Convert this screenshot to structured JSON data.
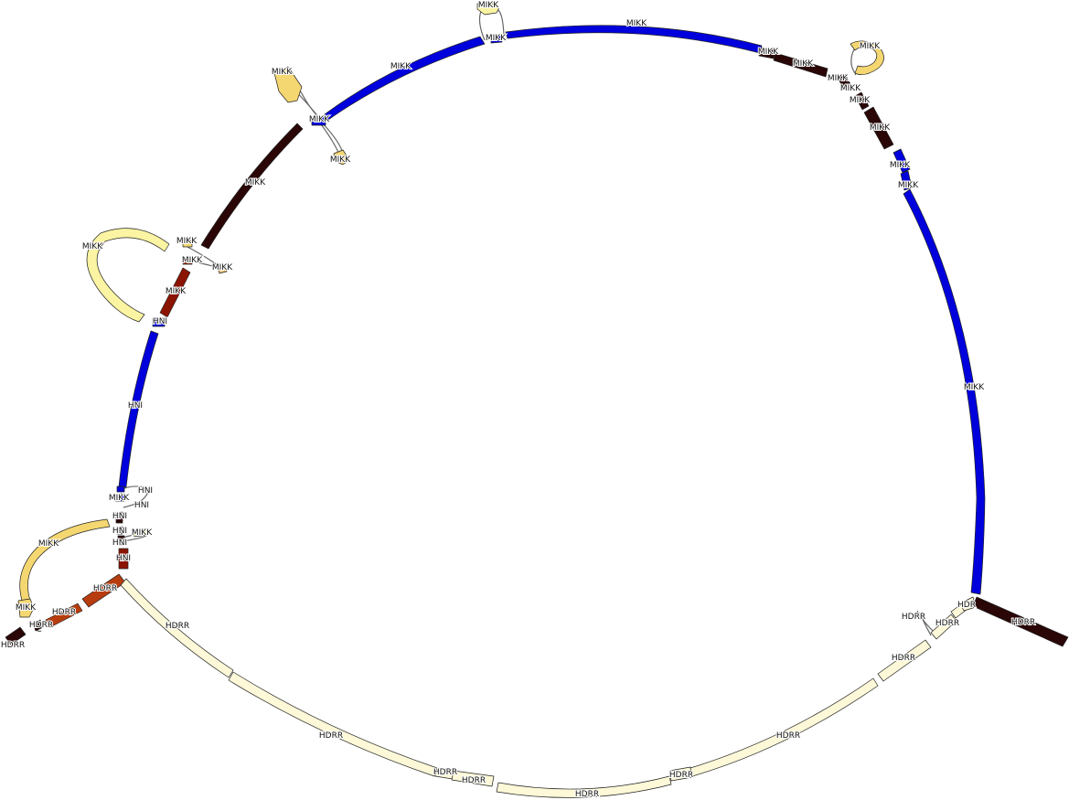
{
  "palette": {
    "blue": "#0000dd",
    "maroon": "#2a0606",
    "darkred": "#8b1400",
    "rust": "#b73d0f",
    "yellow": "#f5d771",
    "paleyellow": "#fbf4a2",
    "cream": "#fdf8d8",
    "peach": "#f2c57a"
  },
  "labels": {
    "mikk": "MIKK",
    "hni": "HNI",
    "hdrr": "HDRR",
    "hdr": "HDR"
  },
  "nodes": [
    {
      "id": "n-top-arc",
      "label": "MIKK",
      "color": "blue"
    },
    {
      "id": "n-top-bubble",
      "label": "MIKK",
      "color": "paleyellow"
    },
    {
      "id": "n-top-junction",
      "label": "MIKK",
      "color": "blue"
    },
    {
      "id": "n-upperleft-arc",
      "label": "MIKK",
      "color": "blue"
    },
    {
      "id": "n-upperleft-bubble-a",
      "label": "MIKK",
      "color": "yellow"
    },
    {
      "id": "n-upperleft-junction",
      "label": "MIKK",
      "color": "blue"
    },
    {
      "id": "n-upperleft-bubble-b",
      "label": "MIKK",
      "color": "yellow"
    },
    {
      "id": "n-left-diagonal",
      "label": "MIKK",
      "color": "maroon"
    },
    {
      "id": "n-left-loop",
      "label": "MIKK",
      "color": "paleyellow"
    },
    {
      "id": "n-left-junction-a",
      "label": "MIKK",
      "color": "yellow"
    },
    {
      "id": "n-left-junction-b",
      "label": "MIKK",
      "color": "darkred"
    },
    {
      "id": "n-left-junction-c",
      "label": "MIKK",
      "color": "peach"
    },
    {
      "id": "n-left-short",
      "label": "MIKK",
      "color": "darkred"
    },
    {
      "id": "n-left-hni-a",
      "label": "HNI",
      "color": "blue"
    },
    {
      "id": "n-left-hni-arc",
      "label": "HNI",
      "color": "blue"
    },
    {
      "id": "n-left-small-mikk",
      "label": "MIKK",
      "color": "blue"
    },
    {
      "id": "n-left-hni-b",
      "label": "HNI",
      "color": "blue"
    },
    {
      "id": "n-left-hni-c",
      "label": "HNI",
      "color": "maroon"
    },
    {
      "id": "n-left-hni-d",
      "label": "HNI",
      "color": "maroon"
    },
    {
      "id": "n-left-small-mikk-b",
      "label": "MIKK",
      "color": "paleyellow"
    },
    {
      "id": "n-left-hni-e",
      "label": "HNI",
      "color": "darkred"
    },
    {
      "id": "n-left-hni-f",
      "label": "HNI",
      "color": "maroon"
    },
    {
      "id": "n-lower-left-loop",
      "label": "MIKK",
      "color": "yellow"
    },
    {
      "id": "n-lower-left-mikk",
      "label": "MIKK",
      "color": "yellow"
    },
    {
      "id": "n-hdrr-rust-a",
      "label": "HDRR",
      "color": "rust"
    },
    {
      "id": "n-hdrr-rust-b",
      "label": "HDRR",
      "color": "rust"
    },
    {
      "id": "n-hdrr-small",
      "label": "HDRR",
      "color": "maroon"
    },
    {
      "id": "n-hdrr-tail",
      "label": "HDRR",
      "color": "maroon"
    },
    {
      "id": "n-bottom-arc-a",
      "label": "HDRR",
      "color": "cream"
    },
    {
      "id": "n-bottom-arc-b",
      "label": "HDRR",
      "color": "cream"
    },
    {
      "id": "n-bottom-small-a",
      "label": "HDRR",
      "color": "cream"
    },
    {
      "id": "n-bottom-small-b",
      "label": "HDRR",
      "color": "cream"
    },
    {
      "id": "n-bottom-arc-c",
      "label": "HDRR",
      "color": "cream"
    },
    {
      "id": "n-bottom-small-c",
      "label": "HDRR",
      "color": "cream"
    },
    {
      "id": "n-bottom-arc-d",
      "label": "HDRR",
      "color": "cream"
    },
    {
      "id": "n-bottom-arc-e",
      "label": "HDRR",
      "color": "cream"
    },
    {
      "id": "n-right-bottom-small",
      "label": "HDRR",
      "color": "cream"
    },
    {
      "id": "n-right-bottom-small-b",
      "label": "HDRR",
      "color": "cream"
    },
    {
      "id": "n-right-hdr",
      "label": "HDR",
      "color": "cream"
    },
    {
      "id": "n-right-tail",
      "label": "HDRR",
      "color": "maroon"
    },
    {
      "id": "n-right-arc",
      "label": "MIKK",
      "color": "blue"
    },
    {
      "id": "n-right-small-blue-a",
      "label": "MIKK",
      "color": "blue"
    },
    {
      "id": "n-right-small-blue-b",
      "label": "MIKK",
      "color": "blue"
    },
    {
      "id": "n-right-maroon-a",
      "label": "MIKK",
      "color": "maroon"
    },
    {
      "id": "n-right-maroon-b",
      "label": "MIKK",
      "color": "maroon"
    },
    {
      "id": "n-right-maroon-c",
      "label": "MIKK",
      "color": "maroon"
    },
    {
      "id": "n-right-maroon-d",
      "label": "MIKK",
      "color": "maroon"
    },
    {
      "id": "n-top-right-loop",
      "label": "MIKK",
      "color": "yellow"
    },
    {
      "id": "n-top-right-junction",
      "label": "MIKK",
      "color": "maroon"
    }
  ]
}
